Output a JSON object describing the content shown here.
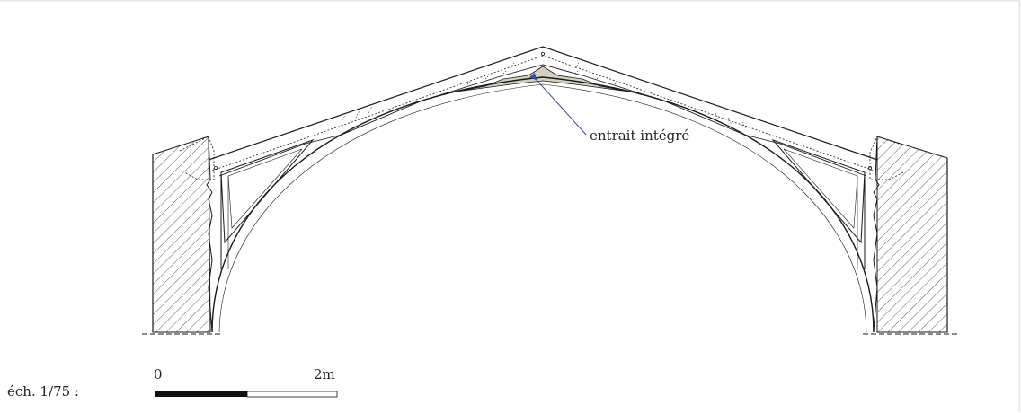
{
  "annotation": {
    "label": "entrait intégré"
  },
  "scale": {
    "label": "éch. 1/75 :",
    "start": "0",
    "end": "2m"
  },
  "colors": {
    "line": "#1a1a1a",
    "fill_tie": "#d4d2bf",
    "arrow": "#3b4aa0",
    "hatch": "#333333"
  }
}
